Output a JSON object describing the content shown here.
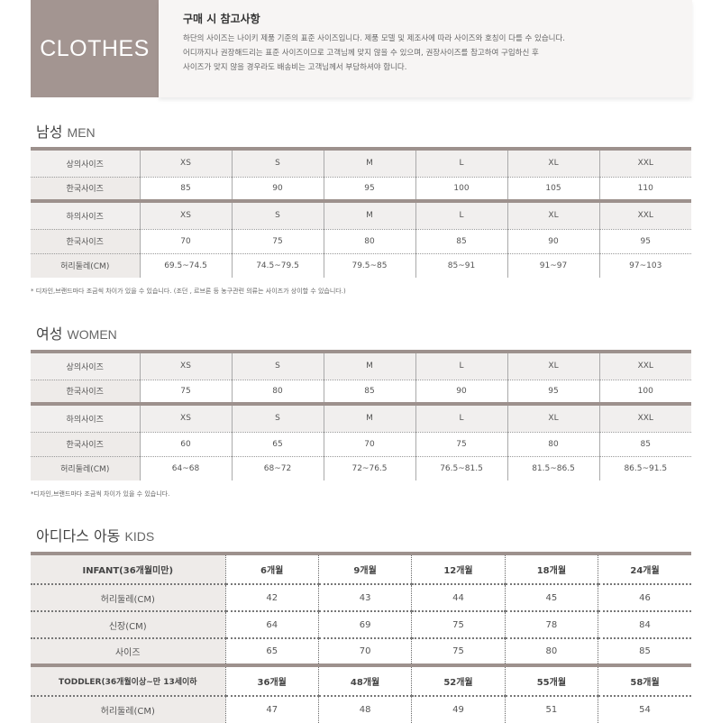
{
  "header": {
    "badge": "CLOTHES",
    "title": "구매 시 참고사항",
    "lines": [
      "하단의 사이즈는 나이키 제품 기준의 표준 사이즈입니다. 제품 모델 및 제조사에 따라 사이즈와 호칭이 다를 수 있습니다.",
      "어디까지나 권장해드리는 표준 사이즈이므로 고객님께 맞지 않을 수 있으며, 권장사이즈를 참고하여 구입하신 후",
      "사이즈가 맞지 않을 경우라도 배송비는 고객님께서 부담하셔야 합니다."
    ]
  },
  "men": {
    "title_ko": "남성",
    "title_en": "MEN",
    "rows": [
      [
        "상의사이즈",
        "XS",
        "S",
        "M",
        "L",
        "XL",
        "XXL"
      ],
      [
        "한국사이즈",
        "85",
        "90",
        "95",
        "100",
        "105",
        "110"
      ],
      [
        "하의사이즈",
        "XS",
        "S",
        "M",
        "L",
        "XL",
        "XXL"
      ],
      [
        "한국사이즈",
        "70",
        "75",
        "80",
        "85",
        "90",
        "95"
      ],
      [
        "허리둘레(CM)",
        "69.5~74.5",
        "74.5~79.5",
        "79.5~85",
        "85~91",
        "91~97",
        "97~103"
      ]
    ],
    "note": "* 디자인,브랜드마다 조금씩 차이가 있을 수 있습니다. (조던 , 르브론 등 농구관련 의류는 사이즈가 상이할 수 있습니다.)"
  },
  "women": {
    "title_ko": "여성",
    "title_en": "WOMEN",
    "rows": [
      [
        "상의사이즈",
        "XS",
        "S",
        "M",
        "L",
        "XL",
        "XXL"
      ],
      [
        "한국사이즈",
        "75",
        "80",
        "85",
        "90",
        "95",
        "100"
      ],
      [
        "하의사이즈",
        "XS",
        "S",
        "M",
        "L",
        "XL",
        "XXL"
      ],
      [
        "한국사이즈",
        "60",
        "65",
        "70",
        "75",
        "80",
        "85"
      ],
      [
        "허리둘레(CM)",
        "64~68",
        "68~72",
        "72~76.5",
        "76.5~81.5",
        "81.5~86.5",
        "86.5~91.5"
      ]
    ],
    "note": "*디자인,브랜드마다 조금씩 차이가 있을 수 있습니다."
  },
  "kids": {
    "title_ko": "아디다스 아동",
    "title_en": "KIDS",
    "rows": [
      [
        "INFANT(36개월미만)",
        "6개월",
        "9개월",
        "12개월",
        "18개월",
        "24개월"
      ],
      [
        "허리둘레(CM)",
        "42",
        "43",
        "44",
        "45",
        "46"
      ],
      [
        "신장(CM)",
        "64",
        "69",
        "75",
        "78",
        "84"
      ],
      [
        "사이즈",
        "65",
        "70",
        "75",
        "80",
        "85"
      ],
      [
        "TODDLER(36개월이상~만 13세이하",
        "36개월",
        "48개월",
        "52개월",
        "55개월",
        "58개월"
      ],
      [
        "허리둘레(CM)",
        "47",
        "48",
        "49",
        "51",
        "54"
      ]
    ]
  }
}
